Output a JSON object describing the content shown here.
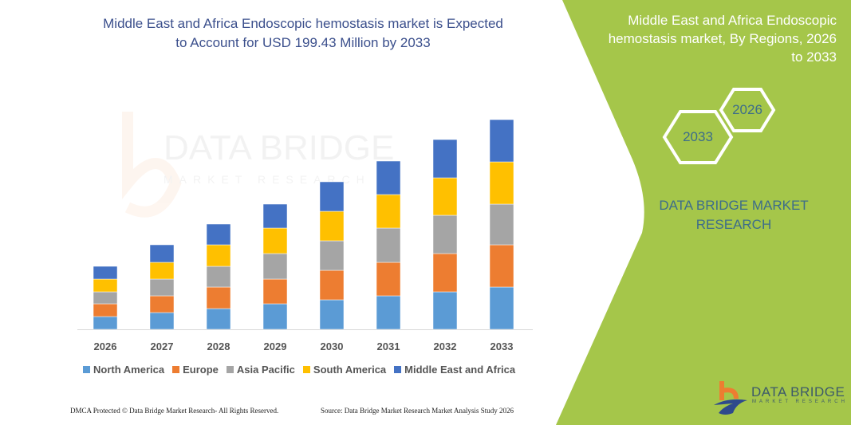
{
  "title": "Middle East and Africa Endoscopic hemostasis market is Expected to Account for USD 199.43 Million by 2033",
  "side_panel": {
    "title": "Middle East and Africa Endoscopic hemostasis market, By Regions, 2026 to 2033",
    "hex_start": "2026",
    "hex_end": "2033",
    "brand": "DATA BRIDGE MARKET RESEARCH",
    "color": "#a5c64a"
  },
  "footer": {
    "left": "DMCA Protected © Data Bridge Market Research-  All Rights Reserved.",
    "right": "Source: Data Bridge Market Research  Market Analysis Study 2026"
  },
  "logo": {
    "name": "DATA BRIDGE",
    "sub": "MARKET RESEARCH"
  },
  "watermark": "DATA BRIDGE MARKET RESEARCH",
  "chart_data": {
    "type": "bar",
    "stacked": true,
    "categories": [
      "2026",
      "2027",
      "2028",
      "2029",
      "2030",
      "2031",
      "2032",
      "2033"
    ],
    "series": [
      {
        "name": "North America",
        "color": "#5b9bd5",
        "values": [
          16,
          21,
          26,
          32,
          37,
          42,
          47,
          53
        ]
      },
      {
        "name": "Europe",
        "color": "#ed7d31",
        "values": [
          16,
          21,
          27,
          31,
          37,
          42,
          48,
          53
        ]
      },
      {
        "name": "Asia Pacific",
        "color": "#a5a5a5",
        "values": [
          15,
          21,
          26,
          32,
          37,
          43,
          48,
          51
        ]
      },
      {
        "name": "South America",
        "color": "#ffc000",
        "values": [
          16,
          21,
          27,
          32,
          37,
          42,
          47,
          53
        ]
      },
      {
        "name": "Middle East and Africa",
        "color": "#4472c4",
        "values": [
          16,
          22,
          26,
          30,
          37,
          42,
          48,
          53
        ]
      }
    ],
    "legend": "bottom",
    "grid": false,
    "y_axis_shown": false
  }
}
